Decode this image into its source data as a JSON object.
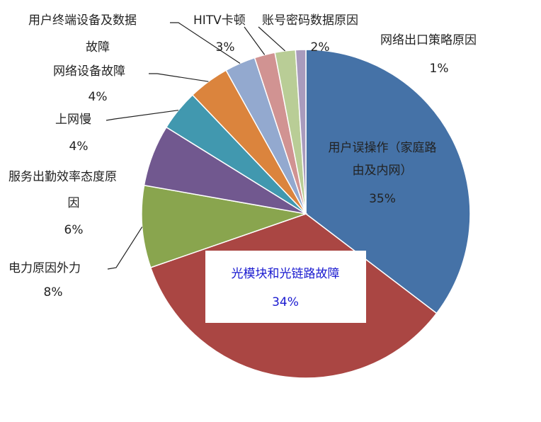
{
  "chart_data": {
    "type": "pie",
    "title": "",
    "slices": [
      {
        "label": "用户误操作（家庭路由及内网）",
        "value": 35,
        "pct_label": "35%",
        "color": "#4572a7"
      },
      {
        "label": "光模块和光链路故障",
        "value": 34,
        "pct_label": "34%",
        "color": "#aa4643"
      },
      {
        "label": "电力原因外力",
        "value": 8,
        "pct_label": "8%",
        "color": "#89a54e"
      },
      {
        "label": "服务出勤效率态度原因",
        "value": 6,
        "pct_label": "6%",
        "color": "#71588f"
      },
      {
        "label": "上网慢",
        "value": 4,
        "pct_label": "4%",
        "color": "#4198af"
      },
      {
        "label": "网络设备故障",
        "value": 4,
        "pct_label": "4%",
        "color": "#db843d"
      },
      {
        "label": "用户终端设备及数据故障",
        "value": 3,
        "pct_label": "3%",
        "color": "#93a9cf"
      },
      {
        "label": "HITV卡顿",
        "value": 2,
        "pct_label": "2%",
        "color": "#d19392"
      },
      {
        "label": "账号密码数据原因",
        "value": 2,
        "pct_label": "2%",
        "color": "#b9cd96"
      },
      {
        "label": "网络出口策略原因",
        "value": 1,
        "pct_label": "1%",
        "color": "#a99bbd"
      }
    ]
  }
}
